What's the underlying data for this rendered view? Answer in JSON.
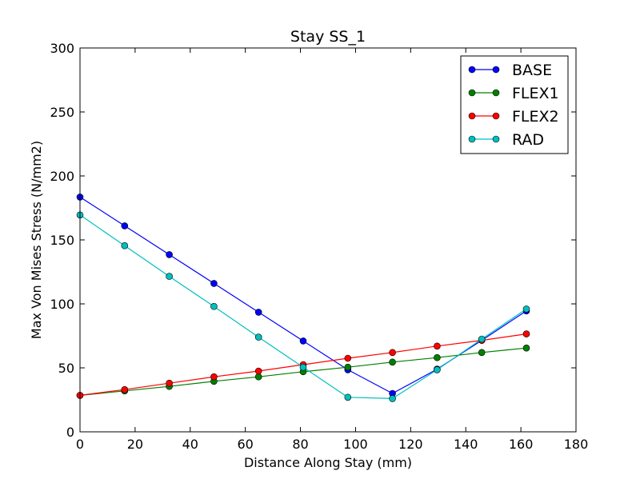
{
  "chart_data": {
    "type": "line",
    "title": "Stay SS_1",
    "xlabel": "Distance Along Stay (mm)",
    "ylabel": "Max Von Mises Stress (N/mm2)",
    "xlim": [
      0,
      180
    ],
    "ylim": [
      0,
      300
    ],
    "xticks": [
      0,
      20,
      40,
      60,
      80,
      100,
      120,
      140,
      160,
      180
    ],
    "yticks": [
      0,
      50,
      100,
      150,
      200,
      250,
      300
    ],
    "x": [
      0,
      16.2,
      32.4,
      48.6,
      64.8,
      81.0,
      97.2,
      113.4,
      129.6,
      145.8,
      162.0
    ],
    "grid": false,
    "legend_position": "top-right",
    "series": [
      {
        "name": "BASE",
        "color": "#0000ff",
        "values": [
          183.5,
          161.0,
          138.5,
          116.0,
          93.5,
          71.0,
          48.5,
          30.0,
          49.0,
          71.5,
          94.5
        ]
      },
      {
        "name": "FLEX1",
        "color": "#008000",
        "values": [
          28.5,
          32.0,
          35.5,
          39.5,
          43.0,
          47.0,
          50.5,
          54.5,
          58.0,
          62.0,
          65.5
        ]
      },
      {
        "name": "FLEX2",
        "color": "#ff0000",
        "values": [
          28.5,
          33.0,
          38.0,
          43.0,
          47.5,
          52.5,
          57.5,
          62.0,
          67.0,
          71.5,
          76.5
        ]
      },
      {
        "name": "RAD",
        "color": "#00bfbf",
        "values": [
          169.5,
          145.5,
          121.5,
          98.0,
          74.0,
          50.5,
          27.0,
          26.0,
          48.5,
          72.5,
          96.0
        ]
      }
    ]
  }
}
